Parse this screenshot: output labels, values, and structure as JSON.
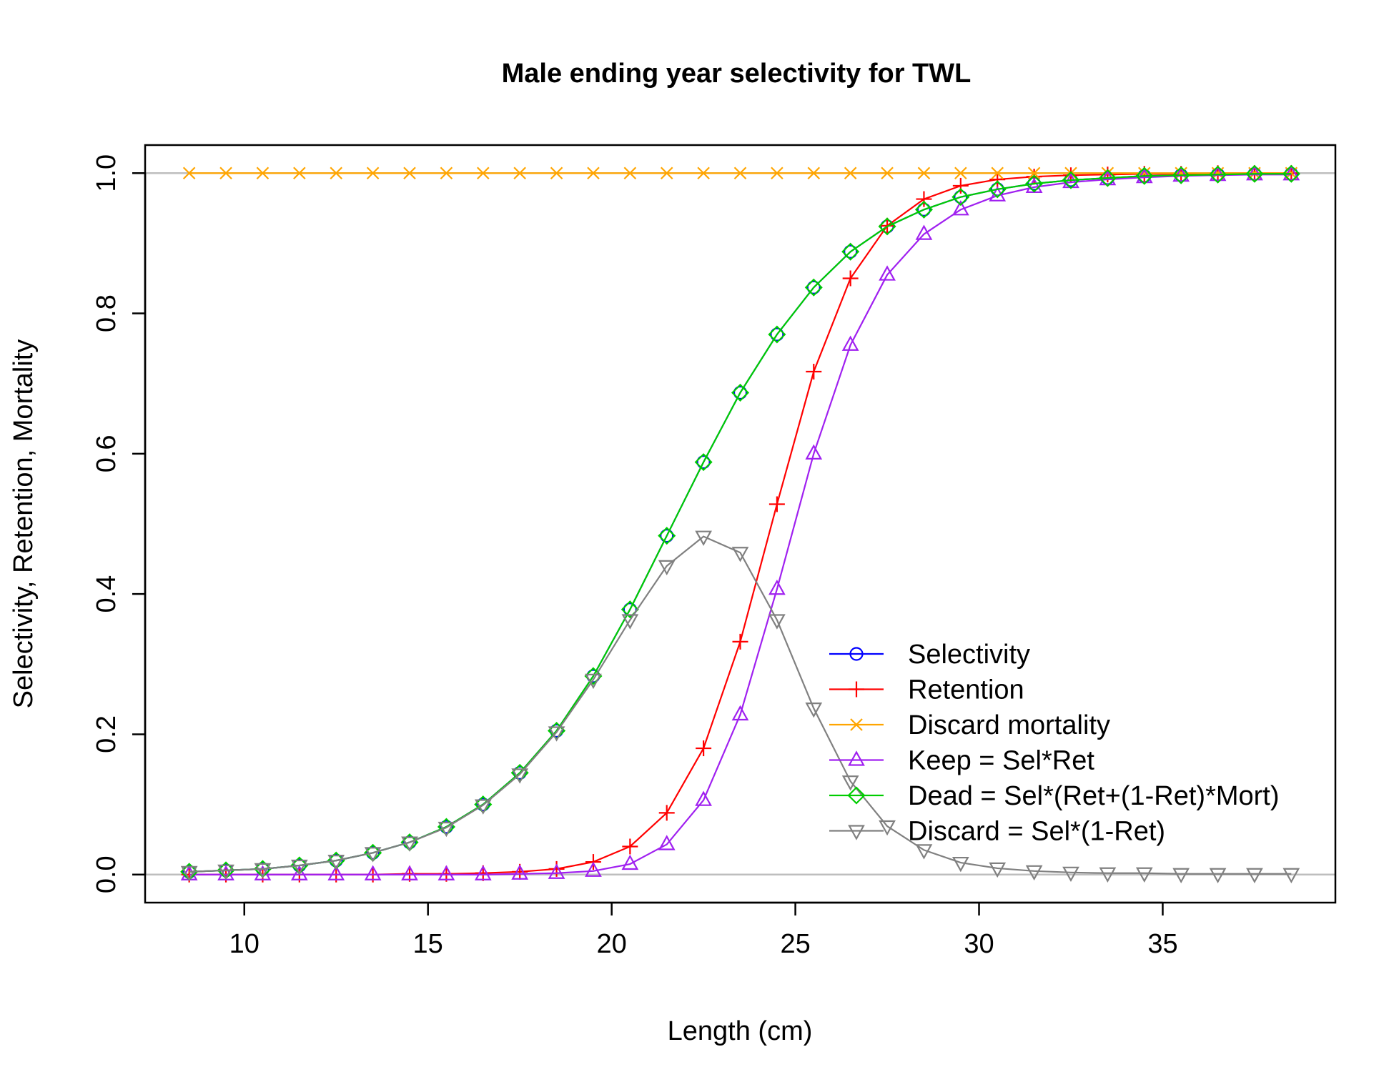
{
  "chart_data": {
    "type": "line",
    "title": "Male ending year selectivity for TWL",
    "xlabel": "Length (cm)",
    "ylabel": "Selectivity, Retention, Mortality",
    "xlim": [
      7.3,
      39.7
    ],
    "ylim": [
      -0.04,
      1.04
    ],
    "xticks": [
      10,
      15,
      20,
      25,
      30,
      35
    ],
    "yticks": [
      0.0,
      0.2,
      0.4,
      0.6,
      0.8,
      1.0
    ],
    "ytick_labels": [
      "0.0",
      "0.2",
      "0.4",
      "0.6",
      "0.8",
      "1.0"
    ],
    "reference_lines_y": [
      0,
      1
    ],
    "reference_line_color": "#bebebe",
    "legend_position": "bottom-right",
    "x": [
      8.5,
      9.5,
      10.5,
      11.5,
      12.5,
      13.5,
      14.5,
      15.5,
      16.5,
      17.5,
      18.5,
      19.5,
      20.5,
      21.5,
      22.5,
      23.5,
      24.5,
      25.5,
      26.5,
      27.5,
      28.5,
      29.5,
      30.5,
      31.5,
      32.5,
      33.5,
      34.5,
      35.5,
      36.5,
      37.5,
      38.5
    ],
    "series": [
      {
        "name": "Selectivity",
        "color": "#0000ff",
        "marker": "circle",
        "values": [
          0.004,
          0.006,
          0.008,
          0.013,
          0.02,
          0.031,
          0.046,
          0.068,
          0.1,
          0.145,
          0.205,
          0.283,
          0.378,
          0.483,
          0.588,
          0.687,
          0.77,
          0.837,
          0.888,
          0.924,
          0.948,
          0.966,
          0.977,
          0.985,
          0.99,
          0.993,
          0.996,
          0.997,
          0.998,
          0.999,
          0.999
        ]
      },
      {
        "name": "Retention",
        "color": "#ff0000",
        "marker": "plus",
        "values": [
          0.0,
          0.0,
          0.0,
          0.0,
          0.0,
          0.0,
          0.001,
          0.001,
          0.002,
          0.004,
          0.008,
          0.018,
          0.04,
          0.088,
          0.18,
          0.332,
          0.528,
          0.717,
          0.85,
          0.925,
          0.963,
          0.982,
          0.991,
          0.995,
          0.997,
          0.998,
          0.999,
          0.999,
          1.0,
          1.0,
          1.0
        ]
      },
      {
        "name": "Discard mortality",
        "color": "#ffa500",
        "marker": "x",
        "values": [
          1,
          1,
          1,
          1,
          1,
          1,
          1,
          1,
          1,
          1,
          1,
          1,
          1,
          1,
          1,
          1,
          1,
          1,
          1,
          1,
          1,
          1,
          1,
          1,
          1,
          1,
          1,
          1,
          1,
          1,
          1
        ]
      },
      {
        "name": "Keep = Sel*Ret",
        "color": "#a020f0",
        "marker": "triangle-up",
        "values": [
          0.0,
          0.0,
          0.0,
          0.0,
          0.0,
          0.0,
          0.0,
          0.0,
          0.0,
          0.001,
          0.002,
          0.005,
          0.015,
          0.043,
          0.106,
          0.228,
          0.407,
          0.6,
          0.755,
          0.855,
          0.913,
          0.948,
          0.968,
          0.98,
          0.987,
          0.991,
          0.994,
          0.996,
          0.997,
          0.998,
          0.998
        ]
      },
      {
        "name": "Dead = Sel*(Ret+(1-Ret)*Mort)",
        "color": "#00cd00",
        "marker": "diamond",
        "values": [
          0.004,
          0.006,
          0.008,
          0.013,
          0.02,
          0.031,
          0.046,
          0.068,
          0.1,
          0.145,
          0.205,
          0.283,
          0.378,
          0.483,
          0.588,
          0.687,
          0.77,
          0.837,
          0.888,
          0.924,
          0.948,
          0.966,
          0.977,
          0.985,
          0.99,
          0.993,
          0.996,
          0.997,
          0.998,
          0.999,
          0.999
        ]
      },
      {
        "name": "Discard = Sel*(1-Ret)",
        "color": "#808080",
        "marker": "triangle-down",
        "values": [
          0.004,
          0.006,
          0.008,
          0.013,
          0.02,
          0.031,
          0.046,
          0.067,
          0.099,
          0.143,
          0.203,
          0.278,
          0.363,
          0.44,
          0.482,
          0.459,
          0.363,
          0.237,
          0.133,
          0.069,
          0.035,
          0.017,
          0.009,
          0.005,
          0.003,
          0.002,
          0.002,
          0.001,
          0.001,
          0.001,
          0.001
        ]
      }
    ]
  }
}
